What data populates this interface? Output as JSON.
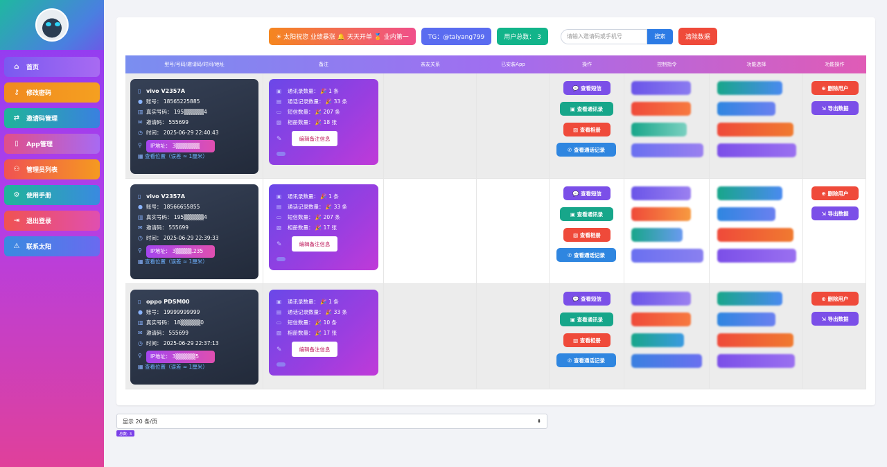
{
  "nav": [
    {
      "label": "首页",
      "icon": "home-icon",
      "glyph": "⌂",
      "c1": "#7a5af0",
      "c2": "#a86af2"
    },
    {
      "label": "修改密码",
      "icon": "key-icon",
      "glyph": "⚷",
      "c1": "#f08a20",
      "c2": "#f5a020"
    },
    {
      "label": "邀请码管理",
      "icon": "shuffle-icon",
      "glyph": "⇄",
      "c1": "#20b49a",
      "c2": "#3a80e0"
    },
    {
      "label": "App管理",
      "icon": "mobile-icon",
      "glyph": "▯",
      "c1": "#e04f8a",
      "c2": "#a86af2"
    },
    {
      "label": "管理员列表",
      "icon": "users-icon",
      "glyph": "⚇",
      "c1": "#f05252",
      "c2": "#f59a20"
    },
    {
      "label": "使用手册",
      "icon": "cogs-icon",
      "glyph": "⚙",
      "c1": "#20b49a",
      "c2": "#3a8ae0"
    },
    {
      "label": "退出登录",
      "icon": "logout-icon",
      "glyph": "⇥",
      "c1": "#f05252",
      "c2": "#e04fb0"
    },
    {
      "label": "联系太阳",
      "icon": "warning-icon",
      "glyph": "⚠",
      "c1": "#3a8ae0",
      "c2": "#6a6af0"
    }
  ],
  "topbar": {
    "slogan": "☀ 太阳祝您 业绩暴涨 🔔 天天开单 🏅 业内第一",
    "tg": "TG：@taiyang799",
    "users_total": "用户总数： 3",
    "search_placeholder": "请输入邀请码或手机号",
    "search_button": "搜索",
    "clear_button": "清除数据"
  },
  "headers": [
    "型号/号码/邀请码/时间/地址",
    "备注",
    "亲友关系",
    "已安装App",
    "操作",
    "控制指令",
    "功能选择",
    "功能操作"
  ],
  "rows": [
    {
      "model": "vivo V2357A",
      "account": "账号： 18565225885",
      "realnum": "真实号码： 195▒▒▒▒▒4",
      "invite": "邀请码： 555699",
      "time": "时间： 2025-06-29 22:40:43",
      "ip": "IP地址： 3▒▒▒▒▒▒",
      "contacts": "通讯录数量： 🎉 1 条",
      "calls": "通话记录数量： 🎉 33 条",
      "sms": "短信数量： 🎉 207 条",
      "photos": "相册数量： 🎉 18 张"
    },
    {
      "model": "vivo V2357A",
      "account": "账号： 18566655855",
      "realnum": "真实号码： 195▒▒▒▒▒4",
      "invite": "邀请码： 555699",
      "time": "时间： 2025-06-29 22:39:33",
      "ip": "IP地址： 3▒▒▒▒.235",
      "contacts": "通讯录数量： 🎉 1 条",
      "calls": "通话记录数量： 🎉 33 条",
      "sms": "短信数量： 🎉 207 条",
      "photos": "相册数量： 🎉 17 张"
    },
    {
      "model": "oppo PDSM00",
      "account": "账号： 19999999999",
      "realnum": "真实号码： 18▒▒▒▒▒0",
      "invite": "邀请码： 555699",
      "time": "时间： 2025-06-29 22:37:13",
      "ip": "IP地址： 3▒▒▒▒▒5",
      "contacts": "通讯录数量： 🎉 1 条",
      "calls": "通话记录数量： 🎉 33 条",
      "sms": "短信数量： 🎉 10 条",
      "photos": "相册数量： 🎉 17 张"
    }
  ],
  "location_label": "查看位置（误差 ≈ 1厘米）",
  "edit_note": "编辑备注信息",
  "ops": {
    "sms": "查看短信",
    "contacts": "查看通讯录",
    "album": "查看相册",
    "calls": "查看通话记录"
  },
  "func_ops": {
    "delete": "删除用户",
    "export": "导出数据"
  },
  "pager": {
    "label": "显示 20 条/页",
    "total": "总数: 3"
  },
  "colors": {
    "sms": "#7b4fe8",
    "contacts": "#17a68a",
    "album": "#ef4a3a",
    "calls": "#2f86e0",
    "delete": "#ef4a3a",
    "export": "#7b4fe8"
  }
}
